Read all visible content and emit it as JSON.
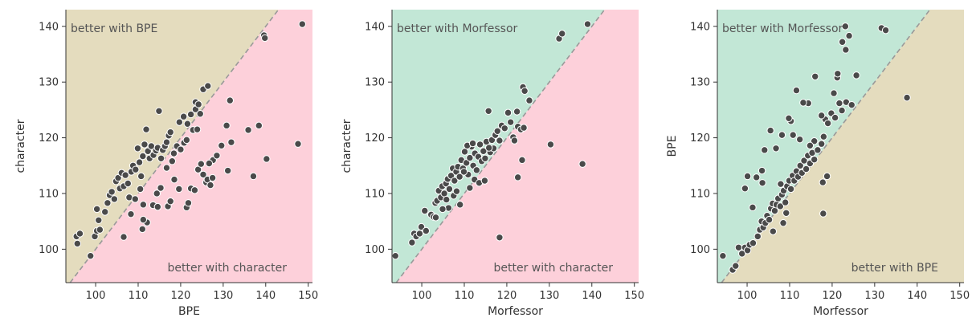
{
  "colors": {
    "bpe_region": "#e4dcbe",
    "character_region": "#fdd0da",
    "morfessor_region": "#c2e7d6",
    "point_fill": "#4a4a4a",
    "point_stroke": "#ffffff",
    "diagonal": "#999999",
    "axis": "#333333"
  },
  "chart_data": [
    {
      "type": "scatter",
      "xlabel": "BPE",
      "ylabel": "character",
      "xlim": [
        93,
        151
      ],
      "ylim": [
        94,
        143
      ],
      "xticks": [
        100,
        110,
        120,
        130,
        140,
        150
      ],
      "yticks": [
        100,
        110,
        120,
        130,
        140
      ],
      "upper_label": "better with BPE",
      "lower_label": "better with character",
      "upper_color": "bpe_region",
      "lower_color": "character_region",
      "points": [
        [
          95.5,
          102.3
        ],
        [
          96.3,
          102.8
        ],
        [
          95.7,
          101.0
        ],
        [
          98.8,
          98.8
        ],
        [
          99.8,
          102.3
        ],
        [
          100.3,
          103.3
        ],
        [
          100.7,
          105.2
        ],
        [
          100.3,
          107.2
        ],
        [
          101.0,
          103.5
        ],
        [
          102.2,
          106.7
        ],
        [
          102.8,
          108.3
        ],
        [
          103.3,
          109.7
        ],
        [
          103.8,
          110.3
        ],
        [
          104.4,
          109.0
        ],
        [
          104.8,
          112.2
        ],
        [
          105.3,
          112.8
        ],
        [
          105.7,
          110.9
        ],
        [
          106.1,
          113.7
        ],
        [
          106.6,
          111.3
        ],
        [
          107.0,
          113.3
        ],
        [
          107.6,
          111.8
        ],
        [
          107.9,
          109.3
        ],
        [
          108.4,
          113.9
        ],
        [
          108.8,
          115.0
        ],
        [
          109.4,
          114.3
        ],
        [
          109.9,
          118.1
        ],
        [
          110.3,
          115.6
        ],
        [
          110.7,
          113.1
        ],
        [
          111.1,
          116.7
        ],
        [
          111.5,
          118.8
        ],
        [
          111.9,
          121.5
        ],
        [
          112.3,
          117.6
        ],
        [
          112.7,
          116.3
        ],
        [
          113.1,
          118.5
        ],
        [
          113.6,
          116.9
        ],
        [
          114.2,
          117.7
        ],
        [
          114.6,
          118.2
        ],
        [
          114.9,
          124.8
        ],
        [
          115.4,
          116.3
        ],
        [
          115.8,
          117.8
        ],
        [
          116.3,
          118.5
        ],
        [
          116.7,
          119.2
        ],
        [
          117.2,
          120.4
        ],
        [
          117.6,
          121.0
        ],
        [
          118.0,
          115.8
        ],
        [
          116.7,
          114.6
        ],
        [
          119.1,
          118.5
        ],
        [
          120.0,
          117.9
        ],
        [
          120.8,
          119.1
        ],
        [
          121.4,
          119.6
        ],
        [
          121.6,
          122.5
        ],
        [
          122.4,
          124.2
        ],
        [
          122.9,
          121.4
        ],
        [
          123.5,
          125.1
        ],
        [
          123.9,
          121.5
        ],
        [
          124.6,
          124.3
        ],
        [
          125.3,
          128.7
        ],
        [
          126.4,
          129.3
        ],
        [
          123.5,
          126.4
        ],
        [
          124.2,
          126.0
        ],
        [
          108.3,
          106.3
        ],
        [
          109.3,
          109.0
        ],
        [
          110.5,
          110.8
        ],
        [
          111.2,
          108.0
        ],
        [
          112.1,
          104.8
        ],
        [
          113.5,
          107.9
        ],
        [
          114.4,
          110.0
        ],
        [
          115.3,
          111.0
        ],
        [
          114.6,
          107.6
        ],
        [
          106.6,
          102.2
        ],
        [
          111.0,
          103.6
        ],
        [
          111.2,
          105.3
        ],
        [
          117.0,
          107.7
        ],
        [
          117.6,
          108.6
        ],
        [
          118.5,
          112.5
        ],
        [
          119.6,
          110.8
        ],
        [
          121.4,
          107.5
        ],
        [
          121.8,
          108.3
        ],
        [
          122.4,
          110.9
        ],
        [
          123.3,
          110.6
        ],
        [
          124.1,
          114.3
        ],
        [
          124.8,
          115.3
        ],
        [
          125.3,
          113.4
        ],
        [
          126.0,
          112.0
        ],
        [
          126.3,
          112.5
        ],
        [
          127.0,
          111.5
        ],
        [
          127.5,
          112.8
        ],
        [
          127.6,
          116.0
        ],
        [
          126.7,
          115.4
        ],
        [
          128.5,
          116.8
        ],
        [
          129.6,
          118.6
        ],
        [
          130.8,
          122.2
        ],
        [
          131.6,
          126.7
        ],
        [
          131.9,
          119.2
        ],
        [
          131.1,
          114.1
        ],
        [
          135.9,
          121.4
        ],
        [
          138.4,
          122.2
        ],
        [
          137.1,
          113.1
        ],
        [
          140.2,
          116.2
        ],
        [
          139.6,
          138.4
        ],
        [
          139.8,
          137.9
        ],
        [
          147.6,
          118.9
        ],
        [
          148.6,
          140.4
        ],
        [
          119.7,
          122.8
        ],
        [
          120.7,
          123.8
        ],
        [
          118.4,
          117.2
        ]
      ]
    },
    {
      "type": "scatter",
      "xlabel": "Morfessor",
      "ylabel": "character",
      "xlim": [
        93,
        151
      ],
      "ylim": [
        94,
        143
      ],
      "xticks": [
        100,
        110,
        120,
        130,
        140,
        150
      ],
      "yticks": [
        100,
        110,
        120,
        130,
        140
      ],
      "upper_label": "better with Morfessor",
      "lower_label": "better with character",
      "upper_color": "morfessor_region",
      "lower_color": "character_region",
      "points": [
        [
          93.8,
          98.8
        ],
        [
          97.7,
          101.2
        ],
        [
          98.2,
          102.8
        ],
        [
          98.7,
          102.3
        ],
        [
          99.5,
          102.8
        ],
        [
          99.9,
          104.0
        ],
        [
          100.7,
          106.9
        ],
        [
          101.0,
          103.3
        ],
        [
          102.2,
          106.2
        ],
        [
          102.8,
          105.8
        ],
        [
          103.2,
          108.3
        ],
        [
          103.6,
          108.7
        ],
        [
          104.0,
          110.5
        ],
        [
          104.5,
          109.3
        ],
        [
          104.8,
          111.3
        ],
        [
          105.3,
          110.0
        ],
        [
          105.7,
          111.8
        ],
        [
          106.1,
          112.6
        ],
        [
          106.5,
          110.8
        ],
        [
          106.9,
          113.2
        ],
        [
          107.3,
          114.5
        ],
        [
          107.7,
          112.3
        ],
        [
          108.1,
          113.9
        ],
        [
          108.5,
          114.8
        ],
        [
          108.9,
          113.0
        ],
        [
          109.3,
          116.0
        ],
        [
          109.7,
          114.5
        ],
        [
          110.1,
          117.5
        ],
        [
          110.5,
          115.5
        ],
        [
          110.9,
          113.4
        ],
        [
          111.3,
          116.4
        ],
        [
          111.7,
          118.4
        ],
        [
          112.1,
          115.0
        ],
        [
          112.5,
          117.2
        ],
        [
          112.9,
          114.2
        ],
        [
          113.3,
          116.6
        ],
        [
          113.7,
          118.8
        ],
        [
          114.1,
          115.8
        ],
        [
          114.5,
          117.6
        ],
        [
          114.9,
          116.3
        ],
        [
          115.2,
          119.3
        ],
        [
          115.7,
          124.8
        ],
        [
          116.1,
          117.4
        ],
        [
          116.5,
          119.6
        ],
        [
          116.9,
          118.1
        ],
        [
          117.3,
          120.5
        ],
        [
          117.8,
          121.2
        ],
        [
          118.3,
          119.5
        ],
        [
          118.8,
          122.2
        ],
        [
          119.5,
          121.7
        ],
        [
          120.3,
          124.5
        ],
        [
          120.9,
          122.8
        ],
        [
          121.5,
          120.1
        ],
        [
          122.6,
          122.0
        ],
        [
          123.3,
          121.5
        ],
        [
          124.0,
          121.8
        ],
        [
          123.8,
          129.1
        ],
        [
          124.2,
          128.4
        ],
        [
          125.3,
          126.7
        ],
        [
          122.4,
          124.7
        ],
        [
          109.0,
          108.0
        ],
        [
          111.3,
          111.0
        ],
        [
          112.4,
          112.5
        ],
        [
          113.5,
          111.9
        ],
        [
          114.8,
          112.3
        ],
        [
          106.3,
          107.4
        ],
        [
          107.5,
          109.6
        ],
        [
          108.2,
          110.4
        ],
        [
          118.3,
          102.1
        ],
        [
          123.6,
          116.0
        ],
        [
          122.6,
          112.9
        ],
        [
          121.8,
          119.5
        ],
        [
          130.3,
          118.8
        ],
        [
          132.3,
          137.8
        ],
        [
          133.0,
          138.7
        ],
        [
          137.8,
          115.3
        ],
        [
          139.0,
          140.4
        ],
        [
          103.3,
          105.7
        ],
        [
          104.9,
          107.2
        ],
        [
          105.8,
          108.9
        ],
        [
          110.7,
          118.6
        ],
        [
          109.9,
          113.9
        ],
        [
          112.0,
          119.0
        ],
        [
          115.8,
          118.2
        ]
      ]
    },
    {
      "type": "scatter",
      "xlabel": "Morfessor",
      "ylabel": "BPE",
      "xlim": [
        93,
        151
      ],
      "ylim": [
        94,
        143
      ],
      "xticks": [
        100,
        110,
        120,
        130,
        140,
        150
      ],
      "yticks": [
        100,
        110,
        120,
        130,
        140
      ],
      "upper_label": "better with Morfessor",
      "lower_label": "better with BPE",
      "upper_color": "morfessor_region",
      "lower_color": "bpe_region",
      "points": [
        [
          94.3,
          98.8
        ],
        [
          96.6,
          96.3
        ],
        [
          97.3,
          97.0
        ],
        [
          98.0,
          100.3
        ],
        [
          98.8,
          99.2
        ],
        [
          99.5,
          100.3
        ],
        [
          100.1,
          99.8
        ],
        [
          100.6,
          100.8
        ],
        [
          101.4,
          101.1
        ],
        [
          102.5,
          102.3
        ],
        [
          103.0,
          103.5
        ],
        [
          103.4,
          105.0
        ],
        [
          103.8,
          103.9
        ],
        [
          104.3,
          104.7
        ],
        [
          104.7,
          106.0
        ],
        [
          105.2,
          105.3
        ],
        [
          105.6,
          107.3
        ],
        [
          106.0,
          108.2
        ],
        [
          106.5,
          106.9
        ],
        [
          106.9,
          108.0
        ],
        [
          107.3,
          109.1
        ],
        [
          107.8,
          107.7
        ],
        [
          108.2,
          109.8
        ],
        [
          108.6,
          110.5
        ],
        [
          109.0,
          108.4
        ],
        [
          109.4,
          111.3
        ],
        [
          109.9,
          112.3
        ],
        [
          110.3,
          110.8
        ],
        [
          110.7,
          113.2
        ],
        [
          111.1,
          112.3
        ],
        [
          111.6,
          114.0
        ],
        [
          112.0,
          113.0
        ],
        [
          112.5,
          115.0
        ],
        [
          112.9,
          113.7
        ],
        [
          113.4,
          115.9
        ],
        [
          113.9,
          114.4
        ],
        [
          114.3,
          116.8
        ],
        [
          114.8,
          115.4
        ],
        [
          115.3,
          117.3
        ],
        [
          115.8,
          116.1
        ],
        [
          116.6,
          117.8
        ],
        [
          117.5,
          118.9
        ],
        [
          118.0,
          120.2
        ],
        [
          118.4,
          123.3
        ],
        [
          119.0,
          122.6
        ],
        [
          119.8,
          124.4
        ],
        [
          120.7,
          123.6
        ],
        [
          121.2,
          130.8
        ],
        [
          121.3,
          131.5
        ],
        [
          121.7,
          126.2
        ],
        [
          122.3,
          124.9
        ],
        [
          122.4,
          137.2
        ],
        [
          123.1,
          140.0
        ],
        [
          123.2,
          135.8
        ],
        [
          124.0,
          138.3
        ],
        [
          123.3,
          126.4
        ],
        [
          124.6,
          125.9
        ],
        [
          125.7,
          131.2
        ],
        [
          131.6,
          139.7
        ],
        [
          132.6,
          139.3
        ],
        [
          137.6,
          127.2
        ],
        [
          117.9,
          106.4
        ],
        [
          117.8,
          112.0
        ],
        [
          116.0,
          131.0
        ],
        [
          115.8,
          119.4
        ],
        [
          114.4,
          126.2
        ],
        [
          113.2,
          126.3
        ],
        [
          111.6,
          128.5
        ],
        [
          110.3,
          123.0
        ],
        [
          109.8,
          123.5
        ],
        [
          108.2,
          120.5
        ],
        [
          106.8,
          118.1
        ],
        [
          105.5,
          121.3
        ],
        [
          104.1,
          117.8
        ],
        [
          103.5,
          114.1
        ],
        [
          102.2,
          112.9
        ],
        [
          100.1,
          113.1
        ],
        [
          99.5,
          110.9
        ],
        [
          101.3,
          107.5
        ],
        [
          103.6,
          111.9
        ],
        [
          107.9,
          111.7
        ],
        [
          110.8,
          120.5
        ],
        [
          112.4,
          119.7
        ],
        [
          114.8,
          118.6
        ],
        [
          117.5,
          124.0
        ],
        [
          120.4,
          128.0
        ],
        [
          118.8,
          113.1
        ],
        [
          106.1,
          103.2
        ],
        [
          108.5,
          104.7
        ],
        [
          109.2,
          106.5
        ]
      ]
    }
  ]
}
